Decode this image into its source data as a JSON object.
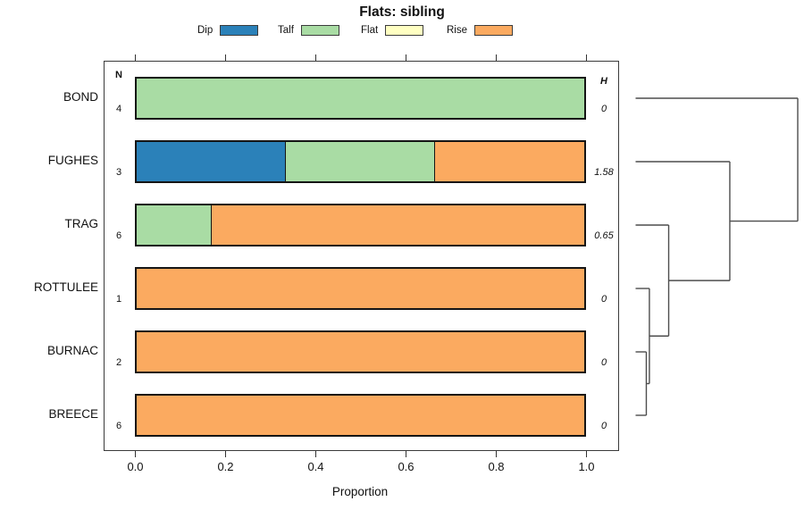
{
  "chart_data": {
    "type": "bar",
    "orientation": "horizontal-stacked",
    "title": "Flats: sibling",
    "xlabel": "Proportion",
    "xlim": [
      0.0,
      1.0
    ],
    "xticks": [
      0.0,
      0.2,
      0.4,
      0.6,
      0.8,
      1.0
    ],
    "grid": false,
    "legend_position": "top",
    "legend": [
      "Dip",
      "Talf",
      "Flat",
      "Rise"
    ],
    "column_headers": {
      "n": "N",
      "h": "H"
    },
    "categories": [
      "BOND",
      "FUGHES",
      "TRAG",
      "ROTTULEE",
      "BURNAC",
      "BREECE"
    ],
    "n_values": [
      4,
      3,
      6,
      1,
      2,
      6
    ],
    "h_values": [
      "0",
      "1.58",
      "0.65",
      "0",
      "0",
      "0"
    ],
    "series": [
      {
        "name": "Dip",
        "color": "#2b81b9",
        "values": [
          0,
          0.333,
          0,
          0,
          0,
          0
        ]
      },
      {
        "name": "Talf",
        "color": "#a9dca4",
        "values": [
          1.0,
          0.333,
          0.167,
          0,
          0,
          0
        ]
      },
      {
        "name": "Flat",
        "color": "#ffffc2",
        "values": [
          0,
          0,
          0,
          0,
          0,
          0
        ]
      },
      {
        "name": "Rise",
        "color": "#fbaa60",
        "values": [
          0,
          0.334,
          0.833,
          1.0,
          1.0,
          1.0
        ]
      }
    ],
    "dendrogram": {
      "description": "hierarchical clustering of rows, drawn right of bars",
      "merges": [
        {
          "id": "m1",
          "children": [
            "BURNAC",
            "BREECE"
          ],
          "height": 0.066
        },
        {
          "id": "m2",
          "children": [
            "ROTTULEE",
            "m1"
          ],
          "height": 0.085
        },
        {
          "id": "m3",
          "children": [
            "TRAG",
            "m2"
          ],
          "height": 0.204
        },
        {
          "id": "m4",
          "children": [
            "FUGHES",
            "m3"
          ],
          "height": 0.581
        },
        {
          "id": "m5",
          "children": [
            "BOND",
            "m4"
          ],
          "height": 1.0
        }
      ]
    }
  }
}
